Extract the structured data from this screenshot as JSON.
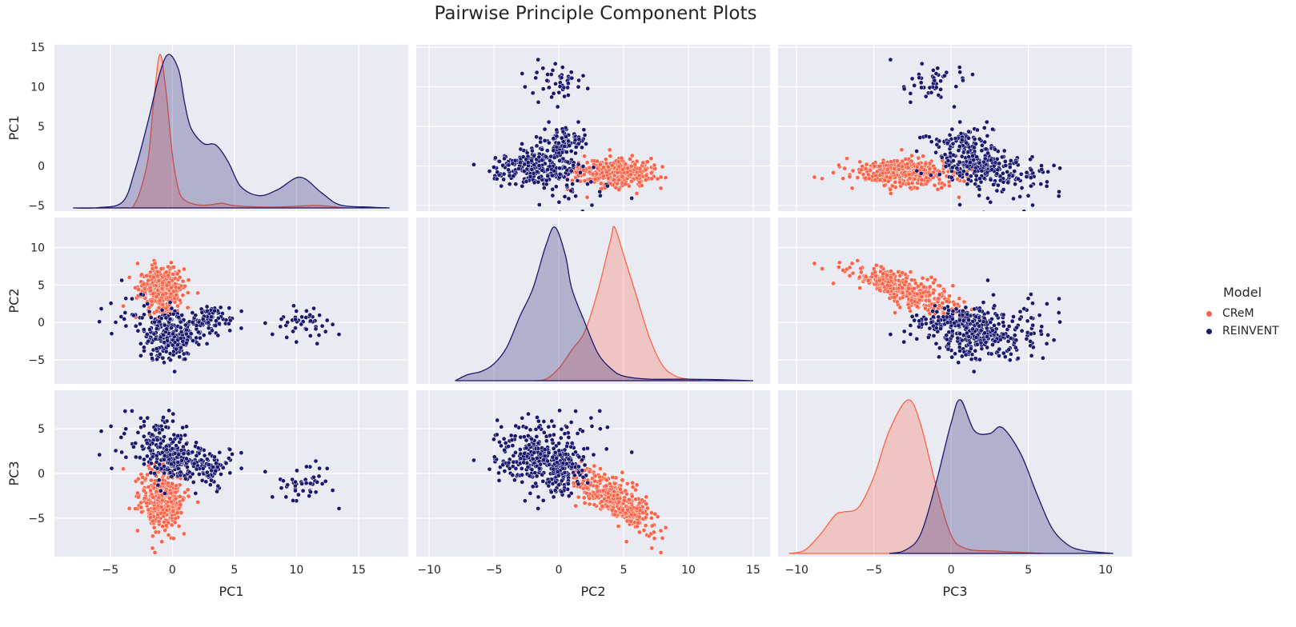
{
  "chart_data": {
    "type": "scatter",
    "title": "Pairwise Principle Component Plots",
    "variables": [
      "PC1",
      "PC2",
      "PC3"
    ],
    "legend": {
      "title": "Model",
      "placement": "right",
      "entries": [
        {
          "name": "CReM",
          "color": "#ff6347"
        },
        {
          "name": "REINVENT",
          "color": "#191970"
        }
      ]
    },
    "grid": true,
    "diagonal": "kde",
    "axes": {
      "PC1": {
        "lim": [
          -9.5,
          19
        ],
        "ticks": [
          -5,
          0,
          5,
          10,
          15
        ],
        "row_ticks": [
          -5,
          0,
          5,
          10,
          15
        ],
        "row_lim": [
          -5.7,
          15.3
        ]
      },
      "PC2": {
        "lim": [
          -11,
          16.3
        ],
        "ticks": [
          -10,
          -5,
          0,
          5,
          10,
          15
        ],
        "row_ticks": [
          -5,
          0,
          5,
          10
        ],
        "row_lim": [
          -8.2,
          14
        ]
      },
      "PC3": {
        "lim": [
          -11.2,
          11.7
        ],
        "ticks": [
          -10,
          -5,
          0,
          5,
          10
        ],
        "row_ticks": [
          -5,
          0,
          5
        ],
        "row_lim": [
          -9.3,
          9.3
        ]
      }
    },
    "series": [
      {
        "name": "CReM",
        "clusters": [
          {
            "n": 380,
            "mean": [
              -0.9,
              4.5,
              -3.1
            ],
            "sd": [
              0.9,
              1.5,
              1.7
            ],
            "corr23": -0.75
          }
        ],
        "kde": {
          "PC1": [
            [
              -8,
              0
            ],
            [
              -4,
              0.002
            ],
            [
              -3,
              0.03
            ],
            [
              -2,
              0.3
            ],
            [
              -1.5,
              0.7
            ],
            [
              -1,
              1.0
            ],
            [
              -0.5,
              0.75
            ],
            [
              0,
              0.35
            ],
            [
              0.5,
              0.12
            ],
            [
              1,
              0.05
            ],
            [
              2,
              0.02
            ],
            [
              3,
              0.02
            ],
            [
              4,
              0.03
            ],
            [
              5,
              0.015
            ],
            [
              8,
              0.005
            ],
            [
              11,
              0.015
            ],
            [
              12,
              0.015
            ],
            [
              14,
              0
            ]
          ],
          "PC2": [
            [
              -2,
              0
            ],
            [
              -1,
              0.01
            ],
            [
              0,
              0.08
            ],
            [
              1,
              0.2
            ],
            [
              2,
              0.32
            ],
            [
              3,
              0.58
            ],
            [
              4,
              0.92
            ],
            [
              4.3,
              1.0
            ],
            [
              5,
              0.82
            ],
            [
              6,
              0.55
            ],
            [
              7,
              0.28
            ],
            [
              8,
              0.1
            ],
            [
              9,
              0.03
            ],
            [
              10,
              0.01
            ],
            [
              11,
              0
            ]
          ],
          "PC3": [
            [
              -10.5,
              0
            ],
            [
              -9.5,
              0.02
            ],
            [
              -8.5,
              0.12
            ],
            [
              -7.5,
              0.25
            ],
            [
              -7,
              0.27
            ],
            [
              -6,
              0.3
            ],
            [
              -5,
              0.5
            ],
            [
              -4,
              0.8
            ],
            [
              -2.8,
              1.0
            ],
            [
              -2,
              0.85
            ],
            [
              -1,
              0.45
            ],
            [
              0,
              0.12
            ],
            [
              1,
              0.03
            ],
            [
              3,
              0.015
            ],
            [
              5,
              0.005
            ],
            [
              6,
              0
            ]
          ]
        }
      },
      {
        "name": "REINVENT",
        "clusters": [
          {
            "n": 170,
            "mean": [
              0.2,
              -1.9,
              1.2
            ],
            "sd": [
              1.0,
              1.6,
              1.2
            ]
          },
          {
            "n": 90,
            "mean": [
              -1.0,
              -1.2,
              3.6
            ],
            "sd": [
              1.0,
              1.7,
              1.6
            ]
          },
          {
            "n": 90,
            "mean": [
              3.2,
              0.3,
              0.6
            ],
            "sd": [
              0.9,
              1.0,
              1.0
            ]
          },
          {
            "n": 45,
            "mean": [
              10.3,
              -0.2,
              -0.7
            ],
            "sd": [
              1.3,
              1.1,
              1.1
            ]
          },
          {
            "n": 20,
            "mean": [
              -3.5,
              1.5,
              3.0
            ],
            "sd": [
              1.0,
              1.5,
              2.0
            ]
          }
        ],
        "kde": {
          "PC1": [
            [
              -8,
              0
            ],
            [
              -6,
              0.002
            ],
            [
              -4,
              0.04
            ],
            [
              -3,
              0.25
            ],
            [
              -2,
              0.55
            ],
            [
              -1,
              0.88
            ],
            [
              -0.3,
              1.0
            ],
            [
              0.5,
              0.9
            ],
            [
              1,
              0.68
            ],
            [
              1.5,
              0.52
            ],
            [
              2.5,
              0.42
            ],
            [
              3.5,
              0.41
            ],
            [
              4.5,
              0.3
            ],
            [
              5.5,
              0.14
            ],
            [
              7,
              0.08
            ],
            [
              8.5,
              0.12
            ],
            [
              10.3,
              0.2
            ],
            [
              12,
              0.1
            ],
            [
              13.5,
              0.02
            ],
            [
              16,
              0.005
            ],
            [
              17.5,
              0
            ]
          ],
          "PC2": [
            [
              -8,
              0
            ],
            [
              -7,
              0.04
            ],
            [
              -6,
              0.06
            ],
            [
              -5,
              0.11
            ],
            [
              -4,
              0.22
            ],
            [
              -3,
              0.42
            ],
            [
              -2,
              0.6
            ],
            [
              -1,
              0.88
            ],
            [
              -0.3,
              1.0
            ],
            [
              0.5,
              0.82
            ],
            [
              1,
              0.6
            ],
            [
              2,
              0.38
            ],
            [
              3,
              0.18
            ],
            [
              4,
              0.08
            ],
            [
              5,
              0.03
            ],
            [
              7,
              0.01
            ],
            [
              10,
              0.01
            ],
            [
              13,
              0.005
            ],
            [
              15,
              0
            ]
          ],
          "PC3": [
            [
              -4,
              0
            ],
            [
              -3,
              0.02
            ],
            [
              -2,
              0.12
            ],
            [
              -1,
              0.45
            ],
            [
              0,
              0.85
            ],
            [
              0.6,
              1.0
            ],
            [
              1.5,
              0.8
            ],
            [
              2.5,
              0.78
            ],
            [
              3.3,
              0.82
            ],
            [
              4.5,
              0.65
            ],
            [
              5.5,
              0.4
            ],
            [
              6.5,
              0.17
            ],
            [
              7.5,
              0.06
            ],
            [
              8.5,
              0.02
            ],
            [
              10.5,
              0
            ]
          ]
        }
      }
    ]
  }
}
